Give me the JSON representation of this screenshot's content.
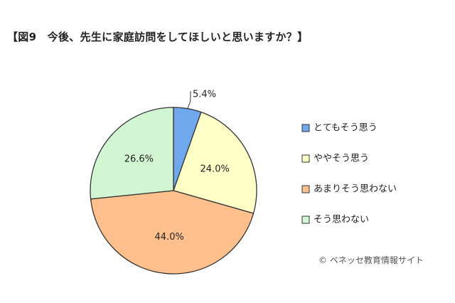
{
  "title": "【図9　今後、先生に家庭訪問をしてほしいと思いますか？】",
  "credit": "© ベネッセ教育情報サイト",
  "chart_data": {
    "type": "pie",
    "title": "今後、先生に家庭訪問をしてほしいと思いますか？",
    "figure_label": "図9",
    "start": "top",
    "direction": "clockwise",
    "legend_position": "right",
    "slices": [
      {
        "label": "とてもそう思う",
        "value": 5.4,
        "value_label": "5.4%",
        "color": "#6fa8ec"
      },
      {
        "label": "ややそう思う",
        "value": 24.0,
        "value_label": "24.0%",
        "color": "#ffffc8"
      },
      {
        "label": "あまりそう思わない",
        "value": 44.0,
        "value_label": "44.0%",
        "color": "#ffc08e"
      },
      {
        "label": "そう思わない",
        "value": 26.6,
        "value_label": "26.6%",
        "color": "#d2f5d2"
      }
    ]
  }
}
